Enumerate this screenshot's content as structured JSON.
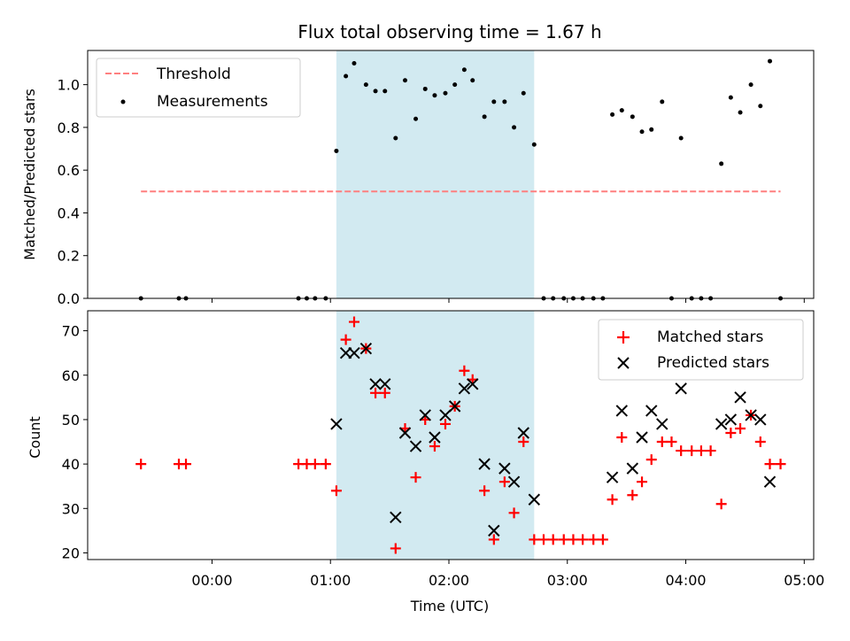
{
  "title": "Flux total observing time = 1.67 h",
  "colors": {
    "shade": "#add8e6",
    "threshold": "#ff7f7f",
    "matched": "#ff0000",
    "predicted": "#000000",
    "measure": "#000000"
  },
  "chart_data": [
    {
      "type": "scatter",
      "ylabel": "Matched/Predicted stars",
      "xlim_hours": [
        -1.05,
        5.08
      ],
      "ylim": [
        0,
        1.16
      ],
      "yticks": [
        "0.0",
        "0.2",
        "0.4",
        "0.6",
        "0.8",
        "1.0"
      ],
      "shaded_span_hours": [
        1.05,
        2.72
      ],
      "legend": {
        "position": "top-left",
        "entries": [
          "Threshold",
          "Measurements"
        ]
      },
      "threshold": {
        "name": "Threshold",
        "y": 0.5,
        "x_range_hours": [
          -0.6,
          4.8
        ]
      },
      "series": [
        {
          "name": "Measurements",
          "x_hours": [
            -0.6,
            -0.28,
            -0.22,
            0.73,
            0.8,
            0.87,
            0.96,
            1.05,
            1.13,
            1.2,
            1.3,
            1.38,
            1.46,
            1.55,
            1.63,
            1.72,
            1.8,
            1.88,
            1.97,
            2.05,
            2.13,
            2.2,
            2.3,
            2.38,
            2.47,
            2.55,
            2.63,
            2.72,
            2.8,
            2.88,
            2.97,
            3.05,
            3.13,
            3.22,
            3.3,
            3.38,
            3.46,
            3.55,
            3.63,
            3.71,
            3.8,
            3.88,
            3.96,
            4.05,
            4.13,
            4.21,
            4.3,
            4.38,
            4.46,
            4.55,
            4.63,
            4.71,
            4.8
          ],
          "y": [
            0,
            0,
            0,
            0,
            0,
            0,
            0,
            0.69,
            1.04,
            1.1,
            1.0,
            0.97,
            0.97,
            0.75,
            1.02,
            0.84,
            0.98,
            0.95,
            0.96,
            1.0,
            1.07,
            1.02,
            0.85,
            0.92,
            0.92,
            0.8,
            0.96,
            0.72,
            0,
            0,
            0,
            0,
            0,
            0,
            0,
            0.86,
            0.88,
            0.85,
            0.78,
            0.79,
            0.92,
            0,
            0.75,
            0,
            0,
            0,
            0.63,
            0.94,
            0.87,
            1.0,
            0.9,
            1.11,
            0
          ]
        }
      ]
    },
    {
      "type": "scatter",
      "xlabel": "Time (UTC)",
      "ylabel": "Count",
      "xlim_hours": [
        -1.05,
        5.08
      ],
      "ylim": [
        18.5,
        74.5
      ],
      "yticks": [
        "20",
        "30",
        "40",
        "50",
        "60",
        "70"
      ],
      "xticks": [
        "00:00",
        "01:00",
        "02:00",
        "03:00",
        "04:00",
        "05:00"
      ],
      "shaded_span_hours": [
        1.05,
        2.72
      ],
      "legend": {
        "position": "top-right",
        "entries": [
          "Matched stars",
          "Predicted stars"
        ]
      },
      "series": [
        {
          "name": "Matched stars",
          "marker": "plus",
          "x_hours": [
            -0.6,
            -0.28,
            -0.22,
            0.73,
            0.8,
            0.87,
            0.96,
            1.05,
            1.13,
            1.2,
            1.3,
            1.38,
            1.46,
            1.55,
            1.63,
            1.72,
            1.8,
            1.88,
            1.97,
            2.05,
            2.13,
            2.2,
            2.3,
            2.38,
            2.47,
            2.55,
            2.63,
            2.72,
            2.8,
            2.88,
            2.97,
            3.05,
            3.13,
            3.22,
            3.3,
            3.38,
            3.46,
            3.55,
            3.63,
            3.71,
            3.8,
            3.88,
            3.96,
            4.05,
            4.13,
            4.21,
            4.3,
            4.38,
            4.46,
            4.55,
            4.63,
            4.71,
            4.8
          ],
          "y": [
            40,
            40,
            40,
            40,
            40,
            40,
            40,
            34,
            68,
            72,
            66,
            56,
            56,
            21,
            48,
            37,
            50,
            44,
            49,
            53,
            61,
            59,
            34,
            23,
            36,
            29,
            45,
            23,
            23,
            23,
            23,
            23,
            23,
            23,
            23,
            32,
            46,
            33,
            36,
            41,
            45,
            45,
            43,
            43,
            43,
            43,
            31,
            47,
            48,
            51,
            45,
            40,
            40
          ]
        },
        {
          "name": "Predicted stars",
          "marker": "x",
          "x_hours": [
            1.05,
            1.13,
            1.2,
            1.3,
            1.38,
            1.46,
            1.55,
            1.63,
            1.72,
            1.8,
            1.88,
            1.97,
            2.05,
            2.13,
            2.2,
            2.3,
            2.38,
            2.47,
            2.55,
            2.63,
            2.72,
            3.38,
            3.46,
            3.55,
            3.63,
            3.71,
            3.8,
            3.96,
            4.3,
            4.38,
            4.46,
            4.55,
            4.63,
            4.71
          ],
          "y": [
            49,
            65,
            65,
            66,
            58,
            58,
            28,
            47,
            44,
            51,
            46,
            51,
            53,
            57,
            58,
            40,
            25,
            39,
            36,
            47,
            32,
            37,
            52,
            39,
            46,
            52,
            49,
            57,
            49,
            50,
            55,
            51,
            50,
            36
          ]
        }
      ]
    }
  ]
}
